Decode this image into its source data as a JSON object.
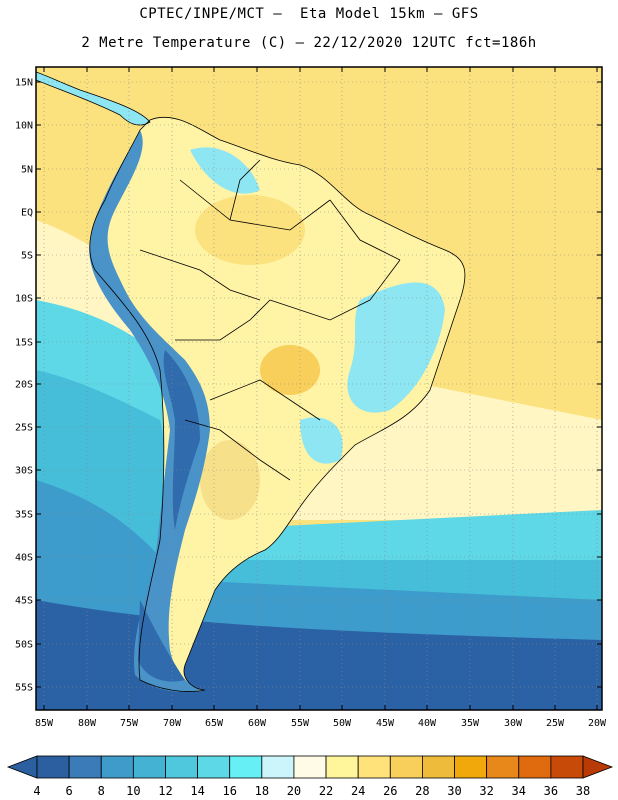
{
  "header": {
    "line1": "CPTEC/INPE/MCT –  Eta Model 15km – GFS",
    "line2": "2 Metre Temperature (C) – 22/12/2020 12UTC fct=186h"
  },
  "axes": {
    "lat_labels": [
      "15N",
      "10N",
      "5N",
      "EQ",
      "5S",
      "10S",
      "15S",
      "20S",
      "25S",
      "30S",
      "35S",
      "40S",
      "45S",
      "50S",
      "55S"
    ],
    "lon_labels": [
      "85W",
      "80W",
      "75W",
      "70W",
      "65W",
      "60W",
      "55W",
      "50W",
      "45W",
      "40W",
      "35W",
      "30W",
      "25W",
      "20W"
    ]
  },
  "colorbar": {
    "labels": [
      "4",
      "6",
      "8",
      "10",
      "12",
      "14",
      "16",
      "18",
      "20",
      "22",
      "24",
      "26",
      "28",
      "30",
      "32",
      "34",
      "36",
      "38"
    ],
    "colors": [
      "#2b5fa0",
      "#3a7bb8",
      "#3f9bc9",
      "#44b3d3",
      "#4fc7dc",
      "#5dd8e6",
      "#66f0f6",
      "#ccf5fb",
      "#fffbe6",
      "#fff59a",
      "#ffe27a",
      "#f7cf5a",
      "#efbb3a",
      "#f0a80a",
      "#e8881a",
      "#e06a0e",
      "#c84a08"
    ],
    "low_color": "#2b5fa0",
    "high_color": "#b83a06"
  },
  "map_colors": {
    "ocean_warm": "#fbe27e",
    "ocean_mid": "#fff6c4",
    "ocean_cool1": "#5ed8e6",
    "ocean_cool2": "#46bdd9",
    "ocean_cool3": "#3d9ccb",
    "ocean_cold": "#2b62a6",
    "land_base": "#fff3a6",
    "land_hot": "#f7cf5a",
    "andes": "#4a93c8",
    "andes_high": "#2f6bad",
    "highlands": "#8ee6f2"
  }
}
